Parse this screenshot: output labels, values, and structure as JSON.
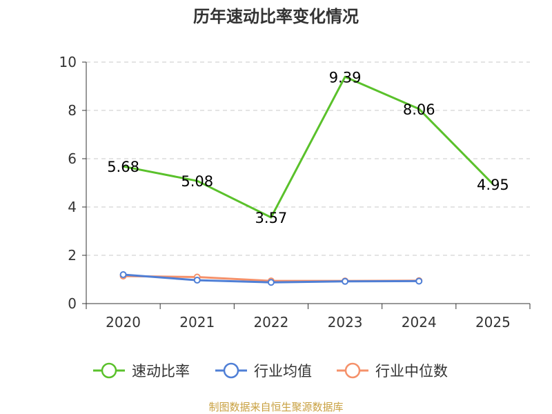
{
  "title": "历年速动比率变化情况",
  "source": "制图数据来自恒生聚源数据库",
  "chart_data": {
    "type": "line",
    "title": "历年速动比率变化情况",
    "categories": [
      "2020",
      "2021",
      "2022",
      "2023",
      "2024",
      "2025"
    ],
    "ylim": [
      0,
      10
    ],
    "yticks": [
      0,
      2,
      4,
      6,
      8,
      10
    ],
    "grid": true,
    "legend_position": "bottom",
    "series": [
      {
        "name": "速动比率",
        "color": "#5ac12b",
        "values": [
          5.68,
          5.08,
          3.57,
          9.39,
          8.06,
          4.95
        ],
        "labels": [
          "5.68",
          "5.08",
          "3.57",
          "9.39",
          "8.06",
          "4.95"
        ],
        "show_labels": true
      },
      {
        "name": "行业均值",
        "color": "#4f7fd6",
        "values": [
          1.2,
          0.97,
          0.88,
          0.92,
          0.93,
          null
        ],
        "show_labels": false
      },
      {
        "name": "行业中位数",
        "color": "#f5916a",
        "values": [
          1.14,
          1.1,
          0.94,
          0.94,
          0.95,
          null
        ],
        "show_labels": false
      }
    ]
  }
}
